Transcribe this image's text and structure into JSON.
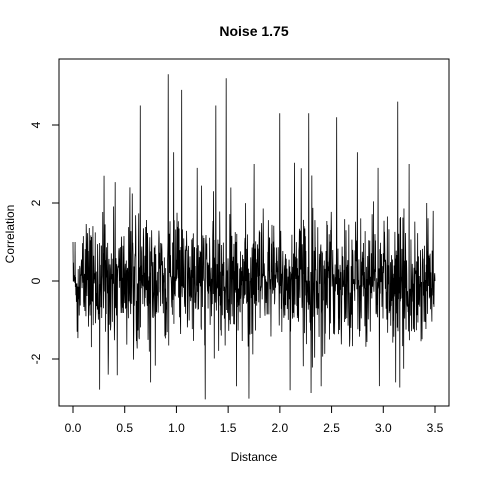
{
  "chart_data": {
    "type": "line",
    "title": "Noise 1.75",
    "xlabel": "Distance",
    "ylabel": "Correlation",
    "xlim": [
      0,
      3.5
    ],
    "ylim": [
      -3.1,
      5.35
    ],
    "x_ticks": [
      0.0,
      0.5,
      1.0,
      1.5,
      2.0,
      2.5,
      3.0,
      3.5
    ],
    "x_tick_labels": [
      "0.0",
      "0.5",
      "1.0",
      "1.5",
      "2.0",
      "2.5",
      "3.0",
      "3.5"
    ],
    "y_ticks": [
      -2,
      0,
      2,
      4
    ],
    "y_tick_labels": [
      "-2",
      "0",
      "2",
      "4"
    ],
    "grid": false,
    "legend": "none",
    "series_color": "#000000",
    "n_points": 1400,
    "noise_sd": 0.75,
    "spikes": [
      {
        "x": 0.02,
        "y": 1.0
      },
      {
        "x": 0.04,
        "y": -1.3
      },
      {
        "x": 0.3,
        "y": 2.7
      },
      {
        "x": 0.34,
        "y": -2.4
      },
      {
        "x": 0.55,
        "y": 2.4
      },
      {
        "x": 0.65,
        "y": 4.5
      },
      {
        "x": 0.75,
        "y": -2.6
      },
      {
        "x": 0.92,
        "y": 5.3
      },
      {
        "x": 1.05,
        "y": 4.9
      },
      {
        "x": 1.2,
        "y": 2.9
      },
      {
        "x": 1.38,
        "y": 4.5
      },
      {
        "x": 1.48,
        "y": 5.2
      },
      {
        "x": 1.58,
        "y": -2.7
      },
      {
        "x": 1.75,
        "y": 3.0
      },
      {
        "x": 2.0,
        "y": 4.3
      },
      {
        "x": 2.1,
        "y": -2.8
      },
      {
        "x": 2.28,
        "y": 4.3
      },
      {
        "x": 2.4,
        "y": -2.7
      },
      {
        "x": 2.55,
        "y": 4.2
      },
      {
        "x": 2.75,
        "y": 3.3
      },
      {
        "x": 2.95,
        "y": 2.9
      },
      {
        "x": 3.14,
        "y": 4.6
      },
      {
        "x": 3.12,
        "y": -2.6
      },
      {
        "x": 3.25,
        "y": 3.0
      },
      {
        "x": 3.42,
        "y": 2.0
      }
    ]
  }
}
